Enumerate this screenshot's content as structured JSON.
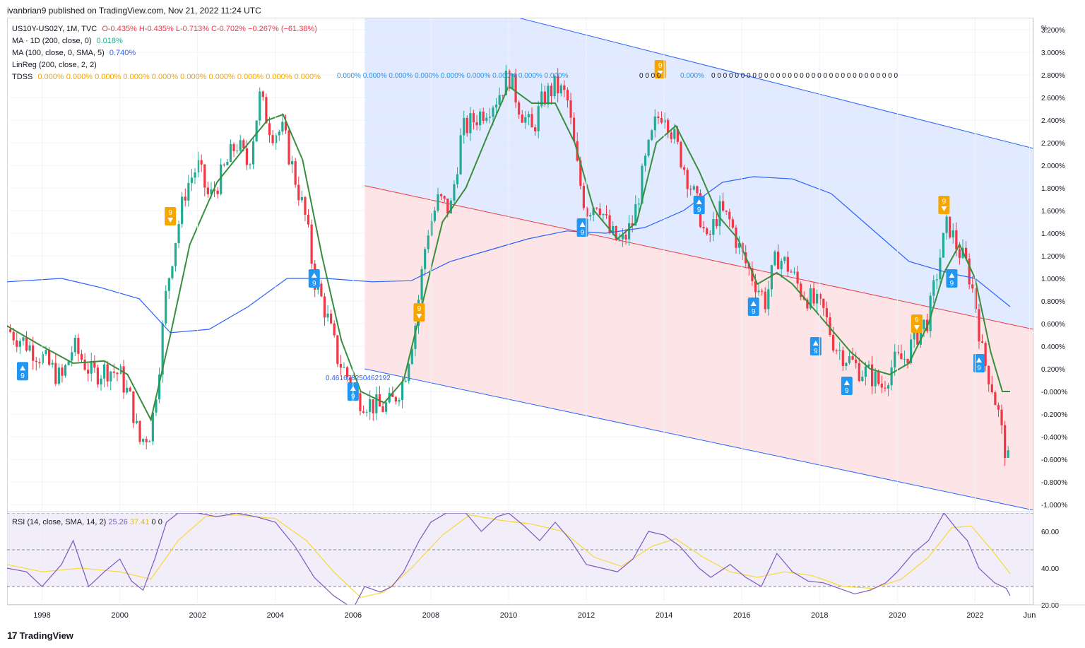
{
  "publisher_line": "ivanbrian9 published on TradingView.com, Nov 21, 2022 11:24 UTC",
  "brand": {
    "logo_glyph": "17",
    "name": "TradingView"
  },
  "legend": {
    "symbol": "US10Y-US02Y, 1M, TVC",
    "ohlc": {
      "o": "O-0.435%",
      "h": "H-0.435%",
      "l": "L-0.713%",
      "c": "C-0.702%",
      "chg": "−0.267% (−61.38%)"
    },
    "ma1": {
      "name": "MA · 1D (200, close, 0)",
      "value": "0.018%"
    },
    "ma2": {
      "name": "MA (100, close, 0, SMA, 5)",
      "value": "0.740%"
    },
    "linreg": {
      "name": "LinReg (200, close, 2, 2)"
    },
    "tdss": {
      "name": "TDSS",
      "values": "0.000% 0.000% 0.000% 0.000% 0.000% 0.000% 0.000% 0.000% 0.000% 0.000%"
    }
  },
  "tdss_blue_values": "0.000% 0.000% 0.000% 0.000% 0.000% 0.000% 0.000% 0.000% 0.000%",
  "tdss_tail": "0.000%",
  "linreg_label": "0.461678250462192",
  "rsi_legend": {
    "name": "RSI (14, close, SMA, 14, 2)",
    "rsi": "25.26",
    "sma": "37.41",
    "z1": "0",
    "z2": "0"
  },
  "colors": {
    "up": "#22ab94",
    "down": "#f23645",
    "ma_green": "#388e3c",
    "ma_blue": "#2962ff",
    "channel_blue": "#dce6ff",
    "channel_red": "#fde1e3",
    "tdss_orange": "#f7a600",
    "tdss_blue": "#2196f3",
    "rsi": "#7e57c2",
    "rsi_ma": "#f5d93a"
  },
  "chart_data": {
    "type": "candlestick",
    "title": "",
    "price_axis": {
      "unit": "%",
      "ticks": [
        "3.200%",
        "3.000%",
        "2.800%",
        "2.600%",
        "2.400%",
        "2.200%",
        "2.000%",
        "1.800%",
        "1.600%",
        "1.400%",
        "1.200%",
        "1.000%",
        "0.800%",
        "0.600%",
        "0.400%",
        "0.200%",
        "-0.000%",
        "-0.200%",
        "-0.400%",
        "-0.600%",
        "-0.800%",
        "-1.000%"
      ],
      "ylim": [
        -1.05,
        3.3
      ]
    },
    "time_axis": {
      "ticks": [
        "1998",
        "2000",
        "2002",
        "2004",
        "2006",
        "2008",
        "2010",
        "2012",
        "2014",
        "2016",
        "2018",
        "2020",
        "2022",
        "Jun"
      ],
      "xlim": [
        1997.1,
        2023.5
      ]
    },
    "series_close": [
      [
        1997.1,
        0.55
      ],
      [
        1997.5,
        0.45
      ],
      [
        1998.0,
        0.3
      ],
      [
        1998.5,
        0.1
      ],
      [
        1998.8,
        0.4
      ],
      [
        1999.3,
        0.15
      ],
      [
        1999.7,
        0.2
      ],
      [
        2000.0,
        0.15
      ],
      [
        2000.3,
        -0.1
      ],
      [
        2000.5,
        -0.45
      ],
      [
        2000.8,
        -0.35
      ],
      [
        2001.0,
        0.2
      ],
      [
        2001.2,
        0.9
      ],
      [
        2001.4,
        1.3
      ],
      [
        2001.7,
        1.8
      ],
      [
        2002.0,
        2.0
      ],
      [
        2002.3,
        1.7
      ],
      [
        2002.6,
        1.9
      ],
      [
        2003.0,
        2.2
      ],
      [
        2003.3,
        2.0
      ],
      [
        2003.6,
        2.6
      ],
      [
        2003.9,
        2.3
      ],
      [
        2004.2,
        2.3
      ],
      [
        2004.5,
        1.9
      ],
      [
        2004.8,
        1.5
      ],
      [
        2005.0,
        1.0
      ],
      [
        2005.3,
        0.7
      ],
      [
        2005.6,
        0.3
      ],
      [
        2005.9,
        0.1
      ],
      [
        2006.1,
        -0.05
      ],
      [
        2006.4,
        -0.1
      ],
      [
        2006.7,
        -0.15
      ],
      [
        2007.0,
        -0.1
      ],
      [
        2007.3,
        0.1
      ],
      [
        2007.6,
        0.6
      ],
      [
        2007.9,
        1.4
      ],
      [
        2008.2,
        1.7
      ],
      [
        2008.5,
        1.6
      ],
      [
        2008.8,
        2.3
      ],
      [
        2009.1,
        2.4
      ],
      [
        2009.4,
        2.5
      ],
      [
        2009.7,
        2.6
      ],
      [
        2010.0,
        2.8
      ],
      [
        2010.3,
        2.5
      ],
      [
        2010.6,
        2.3
      ],
      [
        2010.9,
        2.6
      ],
      [
        2011.2,
        2.7
      ],
      [
        2011.5,
        2.6
      ],
      [
        2011.8,
        1.9
      ],
      [
        2012.0,
        1.6
      ],
      [
        2012.3,
        1.7
      ],
      [
        2012.6,
        1.4
      ],
      [
        2012.9,
        1.3
      ],
      [
        2013.2,
        1.5
      ],
      [
        2013.5,
        2.0
      ],
      [
        2013.8,
        2.4
      ],
      [
        2014.0,
        2.5
      ],
      [
        2014.3,
        2.2
      ],
      [
        2014.6,
        1.9
      ],
      [
        2014.9,
        1.6
      ],
      [
        2015.1,
        1.3
      ],
      [
        2015.4,
        1.6
      ],
      [
        2015.7,
        1.5
      ],
      [
        2016.0,
        1.2
      ],
      [
        2016.3,
        1.0
      ],
      [
        2016.6,
        0.8
      ],
      [
        2016.9,
        1.2
      ],
      [
        2017.2,
        1.1
      ],
      [
        2017.5,
        0.9
      ],
      [
        2017.8,
        0.8
      ],
      [
        2018.1,
        0.7
      ],
      [
        2018.4,
        0.4
      ],
      [
        2018.7,
        0.3
      ],
      [
        2019.0,
        0.2
      ],
      [
        2019.3,
        0.15
      ],
      [
        2019.6,
        0.05
      ],
      [
        2019.9,
        0.25
      ],
      [
        2020.2,
        0.3
      ],
      [
        2020.5,
        0.5
      ],
      [
        2020.8,
        0.65
      ],
      [
        2021.1,
        1.2
      ],
      [
        2021.3,
        1.5
      ],
      [
        2021.5,
        1.3
      ],
      [
        2021.8,
        1.1
      ],
      [
        2022.0,
        0.8
      ],
      [
        2022.2,
        0.3
      ],
      [
        2022.4,
        0.1
      ],
      [
        2022.6,
        -0.2
      ],
      [
        2022.7,
        -0.4
      ],
      [
        2022.9,
        -0.7
      ]
    ],
    "ma_green": [
      [
        1997.1,
        0.58
      ],
      [
        1998.0,
        0.4
      ],
      [
        1998.8,
        0.25
      ],
      [
        1999.6,
        0.27
      ],
      [
        2000.2,
        0.15
      ],
      [
        2000.8,
        -0.25
      ],
      [
        2001.3,
        0.5
      ],
      [
        2001.8,
        1.3
      ],
      [
        2002.5,
        1.85
      ],
      [
        2003.2,
        2.15
      ],
      [
        2003.8,
        2.4
      ],
      [
        2004.2,
        2.45
      ],
      [
        2004.7,
        2.05
      ],
      [
        2005.2,
        1.2
      ],
      [
        2005.7,
        0.45
      ],
      [
        2006.2,
        0.0
      ],
      [
        2006.8,
        -0.1
      ],
      [
        2007.3,
        0.1
      ],
      [
        2007.8,
        0.8
      ],
      [
        2008.3,
        1.5
      ],
      [
        2008.9,
        1.8
      ],
      [
        2009.5,
        2.3
      ],
      [
        2010.0,
        2.7
      ],
      [
        2010.6,
        2.55
      ],
      [
        2011.2,
        2.55
      ],
      [
        2011.7,
        2.2
      ],
      [
        2012.2,
        1.6
      ],
      [
        2012.8,
        1.35
      ],
      [
        2013.3,
        1.5
      ],
      [
        2013.8,
        2.2
      ],
      [
        2014.3,
        2.35
      ],
      [
        2014.9,
        1.95
      ],
      [
        2015.4,
        1.55
      ],
      [
        2015.9,
        1.35
      ],
      [
        2016.4,
        0.95
      ],
      [
        2016.9,
        1.05
      ],
      [
        2017.3,
        0.95
      ],
      [
        2017.8,
        0.75
      ],
      [
        2018.3,
        0.55
      ],
      [
        2018.8,
        0.35
      ],
      [
        2019.3,
        0.2
      ],
      [
        2019.8,
        0.15
      ],
      [
        2020.3,
        0.25
      ],
      [
        2020.8,
        0.6
      ],
      [
        2021.2,
        1.05
      ],
      [
        2021.6,
        1.3
      ],
      [
        2022.0,
        1.0
      ],
      [
        2022.4,
        0.35
      ],
      [
        2022.7,
        0.0
      ],
      [
        2022.9,
        0.0
      ]
    ],
    "ma_blue": [
      [
        1997.1,
        0.97
      ],
      [
        1998.5,
        1.0
      ],
      [
        1999.5,
        0.92
      ],
      [
        2000.5,
        0.82
      ],
      [
        2001.3,
        0.52
      ],
      [
        2002.3,
        0.55
      ],
      [
        2003.3,
        0.75
      ],
      [
        2004.3,
        1.0
      ],
      [
        2005.3,
        1.0
      ],
      [
        2006.5,
        0.97
      ],
      [
        2007.5,
        0.98
      ],
      [
        2008.5,
        1.15
      ],
      [
        2009.5,
        1.25
      ],
      [
        2010.5,
        1.35
      ],
      [
        2011.5,
        1.42
      ],
      [
        2012.5,
        1.4
      ],
      [
        2013.5,
        1.45
      ],
      [
        2014.5,
        1.6
      ],
      [
        2015.5,
        1.85
      ],
      [
        2016.3,
        1.9
      ],
      [
        2017.3,
        1.88
      ],
      [
        2018.3,
        1.75
      ],
      [
        2019.3,
        1.45
      ],
      [
        2020.3,
        1.15
      ],
      [
        2021.3,
        1.05
      ],
      [
        2022.0,
        1.0
      ],
      [
        2022.9,
        0.75
      ]
    ],
    "channel": {
      "mid": [
        [
          2006.3,
          1.82
        ],
        [
          2023.5,
          0.55
        ]
      ],
      "upper": [
        [
          2006.3,
          3.65
        ],
        [
          2023.5,
          2.15
        ]
      ],
      "lower": [
        [
          2006.3,
          0.2
        ],
        [
          2023.5,
          -1.05
        ]
      ]
    },
    "tdss_markers": [
      {
        "x": 1997.5,
        "y": 0.18,
        "label": "9",
        "kind": "buy"
      },
      {
        "x": 2001.3,
        "y": 1.55,
        "label": "9",
        "kind": "sell"
      },
      {
        "x": 2005.0,
        "y": 1.0,
        "label": "9",
        "kind": "buy"
      },
      {
        "x": 2006.0,
        "y": 0.0,
        "label": "9",
        "kind": "buy"
      },
      {
        "x": 2007.7,
        "y": 0.7,
        "label": "9",
        "kind": "sell"
      },
      {
        "x": 2011.9,
        "y": 1.45,
        "label": "9",
        "kind": "buy"
      },
      {
        "x": 2013.9,
        "y": 2.85,
        "label": "9",
        "kind": "sell"
      },
      {
        "x": 2014.9,
        "y": 1.65,
        "label": "9",
        "kind": "buy"
      },
      {
        "x": 2016.3,
        "y": 0.75,
        "label": "9",
        "kind": "buy"
      },
      {
        "x": 2017.9,
        "y": 0.4,
        "label": "9",
        "kind": "buy"
      },
      {
        "x": 2018.7,
        "y": 0.05,
        "label": "9",
        "kind": "buy"
      },
      {
        "x": 2020.5,
        "y": 0.6,
        "label": "9",
        "kind": "sell"
      },
      {
        "x": 2021.2,
        "y": 1.65,
        "label": "9",
        "kind": "sell"
      },
      {
        "x": 2021.4,
        "y": 1.0,
        "label": "9",
        "kind": "buy"
      },
      {
        "x": 2022.1,
        "y": 0.25,
        "label": "9",
        "kind": "buy"
      }
    ],
    "rsi": {
      "axis_ticks": [
        "60.00",
        "40.00",
        "20.00"
      ],
      "ylim": [
        20,
        70
      ],
      "levels": [
        70,
        50,
        30
      ],
      "series": [
        [
          1997.1,
          40
        ],
        [
          1997.6,
          38
        ],
        [
          1998.0,
          30
        ],
        [
          1998.5,
          42
        ],
        [
          1998.8,
          55
        ],
        [
          1999.2,
          30
        ],
        [
          1999.6,
          38
        ],
        [
          2000.0,
          45
        ],
        [
          2000.3,
          33
        ],
        [
          2000.6,
          28
        ],
        [
          2000.9,
          45
        ],
        [
          2001.2,
          65
        ],
        [
          2001.5,
          70
        ],
        [
          2002.0,
          70
        ],
        [
          2002.5,
          68
        ],
        [
          2003.0,
          70
        ],
        [
          2003.5,
          68
        ],
        [
          2004.0,
          65
        ],
        [
          2004.5,
          52
        ],
        [
          2005.0,
          35
        ],
        [
          2005.5,
          25
        ],
        [
          2006.0,
          18
        ],
        [
          2006.3,
          30
        ],
        [
          2006.7,
          27
        ],
        [
          2007.0,
          30
        ],
        [
          2007.3,
          38
        ],
        [
          2007.7,
          55
        ],
        [
          2008.0,
          65
        ],
        [
          2008.4,
          70
        ],
        [
          2008.9,
          70
        ],
        [
          2009.3,
          60
        ],
        [
          2009.7,
          68
        ],
        [
          2010.0,
          70
        ],
        [
          2010.4,
          63
        ],
        [
          2010.8,
          55
        ],
        [
          2011.2,
          65
        ],
        [
          2011.6,
          55
        ],
        [
          2012.0,
          42
        ],
        [
          2012.4,
          40
        ],
        [
          2012.8,
          38
        ],
        [
          2013.2,
          45
        ],
        [
          2013.6,
          60
        ],
        [
          2014.0,
          58
        ],
        [
          2014.4,
          52
        ],
        [
          2014.9,
          40
        ],
        [
          2015.2,
          35
        ],
        [
          2015.7,
          42
        ],
        [
          2016.1,
          35
        ],
        [
          2016.5,
          30
        ],
        [
          2016.9,
          48
        ],
        [
          2017.3,
          38
        ],
        [
          2017.7,
          33
        ],
        [
          2018.1,
          32
        ],
        [
          2018.5,
          29
        ],
        [
          2018.9,
          26
        ],
        [
          2019.3,
          28
        ],
        [
          2019.7,
          32
        ],
        [
          2020.0,
          38
        ],
        [
          2020.4,
          48
        ],
        [
          2020.8,
          55
        ],
        [
          2021.2,
          70
        ],
        [
          2021.5,
          62
        ],
        [
          2021.8,
          55
        ],
        [
          2022.1,
          40
        ],
        [
          2022.5,
          32
        ],
        [
          2022.8,
          29
        ],
        [
          2022.9,
          25
        ]
      ],
      "sma": [
        [
          1997.1,
          42
        ],
        [
          1998.0,
          38
        ],
        [
          1999.0,
          40
        ],
        [
          2000.0,
          38
        ],
        [
          2000.8,
          34
        ],
        [
          2001.5,
          55
        ],
        [
          2002.2,
          68
        ],
        [
          2003.0,
          69
        ],
        [
          2004.0,
          67
        ],
        [
          2004.8,
          55
        ],
        [
          2005.5,
          38
        ],
        [
          2006.2,
          24
        ],
        [
          2006.8,
          27
        ],
        [
          2007.5,
          40
        ],
        [
          2008.3,
          58
        ],
        [
          2009.0,
          69
        ],
        [
          2009.8,
          66
        ],
        [
          2010.6,
          64
        ],
        [
          2011.4,
          60
        ],
        [
          2012.2,
          46
        ],
        [
          2012.9,
          41
        ],
        [
          2013.7,
          52
        ],
        [
          2014.3,
          56
        ],
        [
          2015.0,
          46
        ],
        [
          2015.7,
          38
        ],
        [
          2016.4,
          35
        ],
        [
          2017.1,
          38
        ],
        [
          2017.8,
          36
        ],
        [
          2018.6,
          30
        ],
        [
          2019.4,
          29
        ],
        [
          2020.1,
          34
        ],
        [
          2020.8,
          46
        ],
        [
          2021.4,
          62
        ],
        [
          2021.9,
          63
        ],
        [
          2022.5,
          48
        ],
        [
          2022.9,
          37
        ]
      ]
    }
  }
}
